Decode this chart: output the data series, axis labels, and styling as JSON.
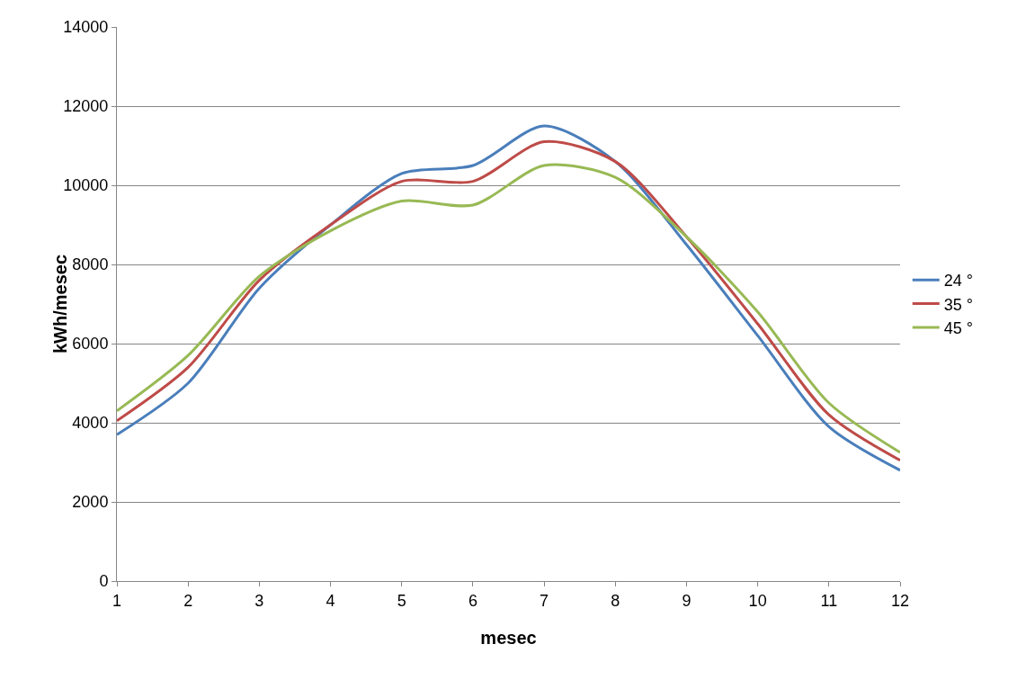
{
  "chart_data": {
    "type": "line",
    "xlabel": "mesec",
    "ylabel": "kWh/mesec",
    "x": [
      1,
      2,
      3,
      4,
      5,
      6,
      7,
      8,
      9,
      10,
      11,
      12
    ],
    "xlim": [
      1,
      12
    ],
    "xticks": [
      1,
      2,
      3,
      4,
      5,
      6,
      7,
      8,
      9,
      10,
      11,
      12
    ],
    "ylim": [
      0,
      14000
    ],
    "yticks": [
      0,
      2000,
      4000,
      6000,
      8000,
      10000,
      12000,
      14000
    ],
    "grid": "y",
    "legend": "right",
    "marker": "none",
    "line_style": "solid",
    "series": [
      {
        "name": "24 °",
        "color": "#4a7ebb",
        "values": [
          3700,
          5000,
          7400,
          9000,
          10300,
          10500,
          11500,
          10600,
          8500,
          6200,
          3900,
          2800
        ]
      },
      {
        "name": "35 °",
        "color": "#be4b48",
        "values": [
          4050,
          5400,
          7600,
          9000,
          10100,
          10100,
          11100,
          10600,
          8700,
          6500,
          4200,
          3050
        ]
      },
      {
        "name": "45 °",
        "color": "#98b954",
        "values": [
          4300,
          5700,
          7700,
          8850,
          9600,
          9500,
          10500,
          10200,
          8700,
          6800,
          4500,
          3250
        ]
      }
    ]
  }
}
